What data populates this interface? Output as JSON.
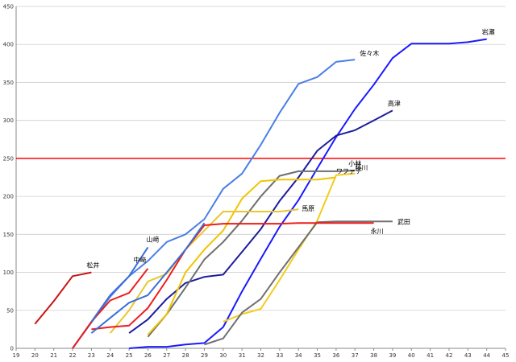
{
  "chart_data": {
    "type": "line",
    "title": "",
    "xlabel": "",
    "ylabel": "",
    "xlim": [
      19,
      45
    ],
    "ylim": [
      0,
      450
    ],
    "x_ticks": [
      19,
      20,
      21,
      22,
      23,
      24,
      25,
      26,
      27,
      28,
      29,
      30,
      31,
      32,
      33,
      34,
      35,
      36,
      37,
      38,
      39,
      40,
      41,
      42,
      43,
      44,
      45
    ],
    "y_ticks": [
      0,
      50,
      100,
      150,
      200,
      250,
      300,
      350,
      400,
      450
    ],
    "grid": "horizontal",
    "legend": "none",
    "reference_line": {
      "y": 250,
      "color": "#ff0000"
    },
    "series": [
      {
        "name": "佐々木",
        "color": "#4a7fe6",
        "points": [
          [
            22,
            0
          ],
          [
            24,
            68
          ],
          [
            25,
            95
          ],
          [
            26,
            115
          ],
          [
            27,
            140
          ],
          [
            28,
            150
          ],
          [
            29,
            170
          ],
          [
            30,
            210
          ],
          [
            31,
            230
          ],
          [
            32,
            268
          ],
          [
            33,
            310
          ],
          [
            34,
            348
          ],
          [
            35,
            357
          ],
          [
            36,
            377
          ],
          [
            37,
            380
          ]
        ]
      },
      {
        "name": "岩瀬",
        "color": "#1a1aff",
        "points": [
          [
            25,
            0
          ],
          [
            26,
            2
          ],
          [
            27,
            2
          ],
          [
            28,
            5
          ],
          [
            29,
            7
          ],
          [
            30,
            28
          ],
          [
            31,
            75
          ],
          [
            32,
            118
          ],
          [
            33,
            160
          ],
          [
            34,
            195
          ],
          [
            35,
            237
          ],
          [
            36,
            278
          ],
          [
            37,
            315
          ],
          [
            38,
            347
          ],
          [
            39,
            382
          ],
          [
            40,
            401
          ],
          [
            41,
            401
          ],
          [
            42,
            401
          ],
          [
            43,
            403
          ],
          [
            44,
            407
          ]
        ]
      },
      {
        "name": "高津",
        "color": "#1c1c9e",
        "points": [
          [
            25,
            20
          ],
          [
            26,
            38
          ],
          [
            27,
            65
          ],
          [
            28,
            86
          ],
          [
            29,
            94
          ],
          [
            30,
            97
          ],
          [
            31,
            127
          ],
          [
            32,
            157
          ],
          [
            33,
            194
          ],
          [
            34,
            225
          ],
          [
            35,
            260
          ],
          [
            36,
            280
          ],
          [
            37,
            287
          ],
          [
            38,
            300
          ],
          [
            39,
            313
          ]
        ]
      },
      {
        "name": "小林",
        "color": "#6e6e6e",
        "points": [
          [
            26,
            15
          ],
          [
            27,
            45
          ],
          [
            28,
            80
          ],
          [
            29,
            117
          ],
          [
            30,
            140
          ],
          [
            31,
            168
          ],
          [
            32,
            200
          ],
          [
            33,
            227
          ],
          [
            34,
            233
          ],
          [
            35,
            233
          ],
          [
            36,
            233
          ],
          [
            37,
            234
          ]
        ]
      },
      {
        "name": "ワファデ",
        "color": "#f0c400",
        "points": [
          [
            26,
            18
          ],
          [
            27,
            45
          ],
          [
            28,
            100
          ],
          [
            29,
            130
          ],
          [
            30,
            155
          ],
          [
            31,
            197
          ],
          [
            32,
            220
          ],
          [
            33,
            222
          ],
          [
            34,
            222
          ],
          [
            35,
            222
          ],
          [
            36,
            225
          ]
        ]
      },
      {
        "name": "藤川",
        "color": "#f2cc1a",
        "points": [
          [
            30,
            35
          ],
          [
            31,
            45
          ],
          [
            32,
            52
          ],
          [
            33,
            90
          ],
          [
            34,
            130
          ],
          [
            35,
            168
          ],
          [
            36,
            228
          ],
          [
            37,
            230
          ]
        ]
      },
      {
        "name": "馬原",
        "color": "#e8c830",
        "points": [
          [
            24,
            20
          ],
          [
            25,
            50
          ],
          [
            26,
            88
          ],
          [
            27,
            98
          ],
          [
            28,
            130
          ],
          [
            29,
            155
          ],
          [
            30,
            180
          ],
          [
            31,
            180
          ],
          [
            32,
            180
          ],
          [
            33,
            180
          ],
          [
            34,
            183
          ]
        ]
      },
      {
        "name": "武田",
        "color": "#707070",
        "points": [
          [
            29,
            5
          ],
          [
            30,
            13
          ],
          [
            31,
            47
          ],
          [
            32,
            65
          ],
          [
            33,
            100
          ],
          [
            34,
            133
          ],
          [
            35,
            166
          ],
          [
            36,
            167
          ],
          [
            37,
            167
          ],
          [
            38,
            167
          ],
          [
            39,
            167
          ]
        ]
      },
      {
        "name": "永川",
        "color": "#ee1c1c",
        "points": [
          [
            23,
            25
          ],
          [
            24,
            28
          ],
          [
            25,
            30
          ],
          [
            26,
            53
          ],
          [
            27,
            90
          ],
          [
            28,
            130
          ],
          [
            29,
            162
          ],
          [
            30,
            164
          ],
          [
            31,
            164
          ],
          [
            32,
            164
          ],
          [
            33,
            164
          ],
          [
            34,
            165
          ],
          [
            35,
            165
          ],
          [
            36,
            165
          ],
          [
            37,
            165
          ],
          [
            38,
            165
          ]
        ]
      },
      {
        "name": "山﨑",
        "color": "#3a6fd8",
        "points": [
          [
            23,
            20
          ],
          [
            24,
            40
          ],
          [
            25,
            60
          ],
          [
            26,
            70
          ],
          [
            27,
            100
          ],
          [
            28,
            130
          ],
          [
            29,
            165
          ]
        ]
      },
      {
        "name": "中﨑",
        "color": "#ee1c1c",
        "points": [
          [
            22,
            0
          ],
          [
            23,
            35
          ],
          [
            24,
            63
          ],
          [
            25,
            73
          ],
          [
            26,
            105
          ]
        ]
      },
      {
        "name": "山﨑",
        "color": "#3a6fd8",
        "points": [
          [
            23,
            35
          ],
          [
            24,
            70
          ],
          [
            25,
            95
          ],
          [
            26,
            133
          ]
        ]
      },
      {
        "name": "松井",
        "color": "#c81414",
        "points": [
          [
            20,
            32
          ],
          [
            21,
            62
          ],
          [
            22,
            95
          ],
          [
            23,
            100
          ]
        ]
      }
    ]
  }
}
